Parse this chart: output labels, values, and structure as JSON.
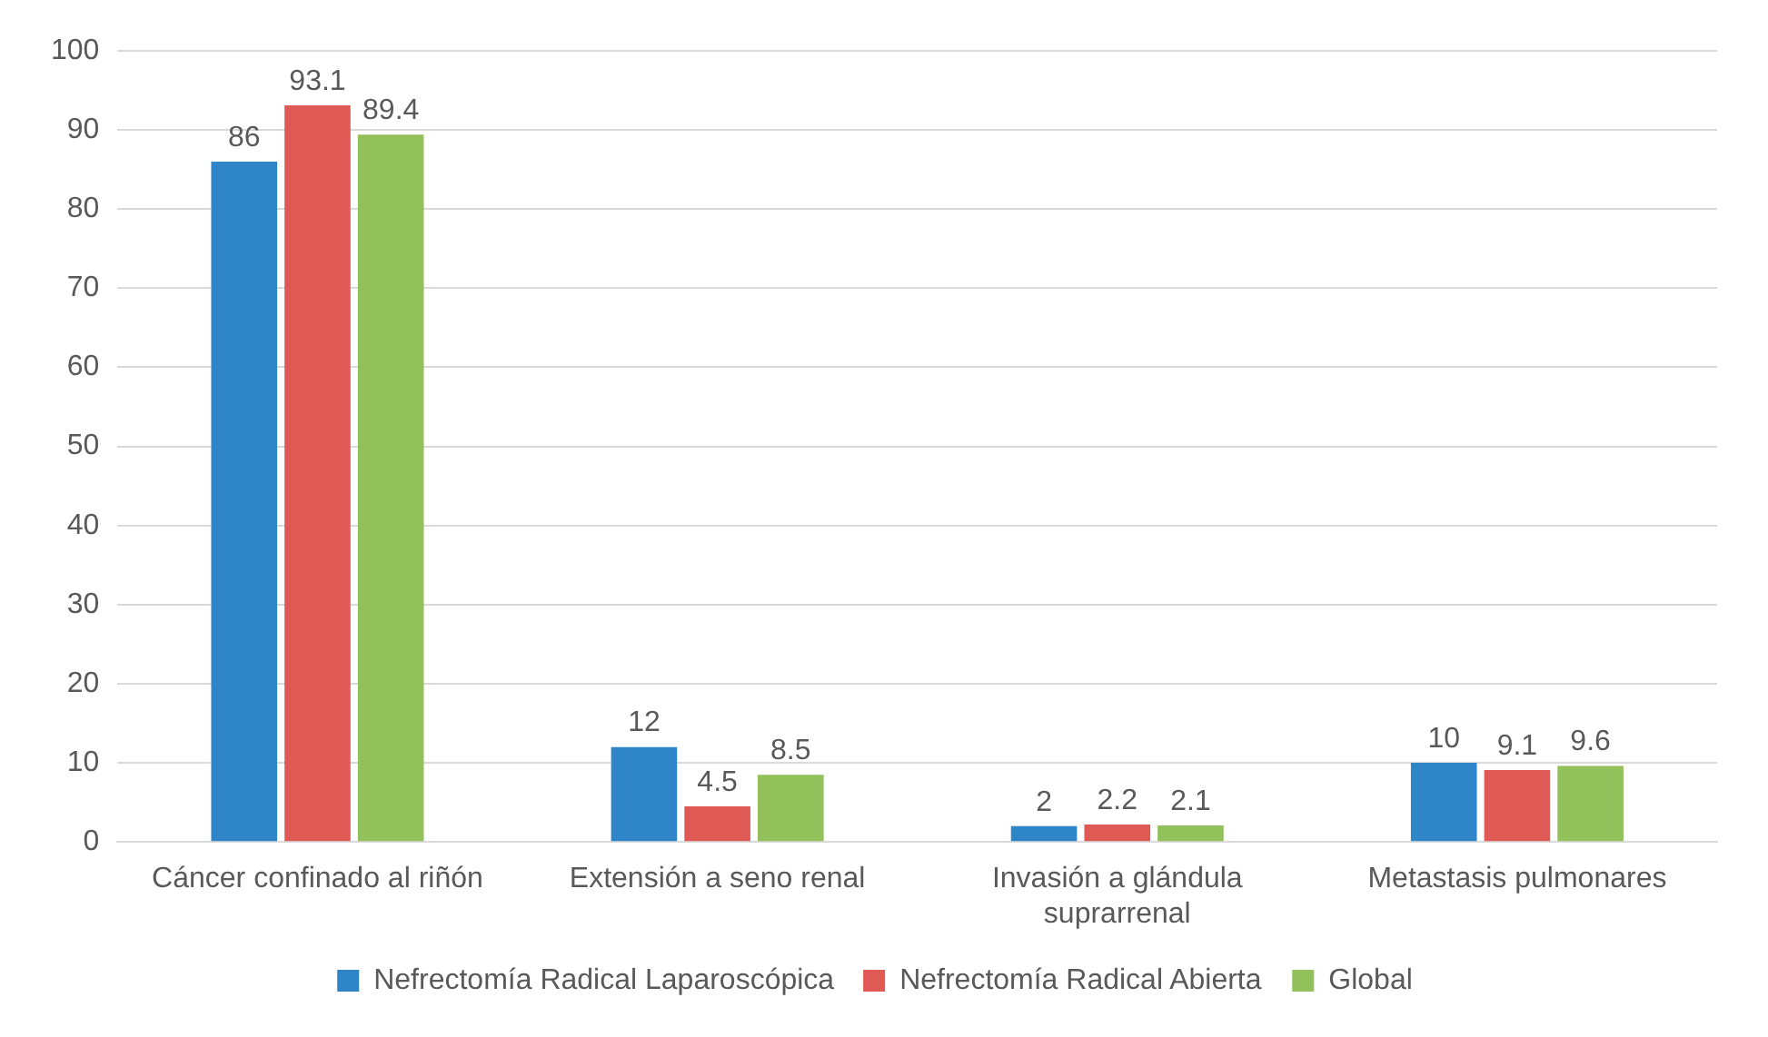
{
  "chart_data": {
    "type": "bar",
    "categories": [
      "Cáncer confinado al riñón",
      "Extensión a seno renal",
      "Invasión a glándula suprarrenal",
      "Metastasis pulmonares"
    ],
    "series": [
      {
        "name": "Nefrectomía Radical Laparoscópica",
        "color": "#2e86c8",
        "values": [
          86,
          12,
          2,
          10
        ]
      },
      {
        "name": "Nefrectomía Radical Abierta",
        "color": "#e05a55",
        "values": [
          93.1,
          4.5,
          2.2,
          9.1
        ]
      },
      {
        "name": "Global",
        "color": "#92c05a",
        "values": [
          89.4,
          8.5,
          2.1,
          9.6
        ]
      }
    ],
    "ylim": [
      0,
      100
    ],
    "yticks": [
      0,
      10,
      20,
      30,
      40,
      50,
      60,
      70,
      80,
      90,
      100
    ],
    "grid": "y",
    "legend": "bottom",
    "data_labels": true
  }
}
